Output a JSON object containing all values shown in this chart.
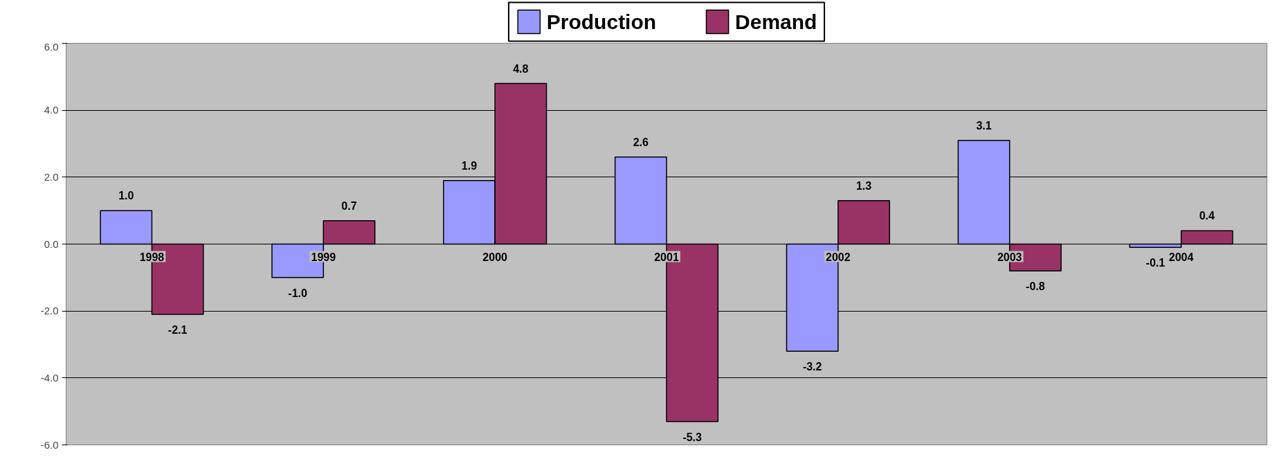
{
  "chart_data": {
    "type": "bar",
    "categories": [
      "1998",
      "1999",
      "2000",
      "2001",
      "2002",
      "2003",
      "2004"
    ],
    "series": [
      {
        "name": "Production",
        "color": "#9999ff",
        "values": [
          1.0,
          -1.0,
          1.9,
          2.6,
          -3.2,
          3.1,
          -0.1
        ],
        "value_labels": [
          "1.0",
          "-1.0",
          "1.9",
          "2.6",
          "-3.2",
          "3.1",
          "-0.1"
        ]
      },
      {
        "name": "Demand",
        "color": "#993366",
        "values": [
          -2.1,
          0.7,
          4.8,
          -5.3,
          1.3,
          -0.8,
          0.4
        ],
        "value_labels": [
          "-2.1",
          "0.7",
          "4.8",
          "-5.3",
          "1.3",
          "-0.8",
          "0.4"
        ]
      }
    ],
    "ylim": [
      -6,
      6
    ],
    "yticks": [
      {
        "value": -6,
        "label": "-6.0"
      },
      {
        "value": -4,
        "label": "-4.0"
      },
      {
        "value": -2,
        "label": "-2.0"
      },
      {
        "value": 0,
        "label": "0.0"
      },
      {
        "value": 2,
        "label": "2.0"
      },
      {
        "value": 4,
        "label": "4.0"
      },
      {
        "value": 6,
        "label": "6.0"
      }
    ],
    "grid": "y",
    "legend": "top",
    "data_labels": true
  }
}
